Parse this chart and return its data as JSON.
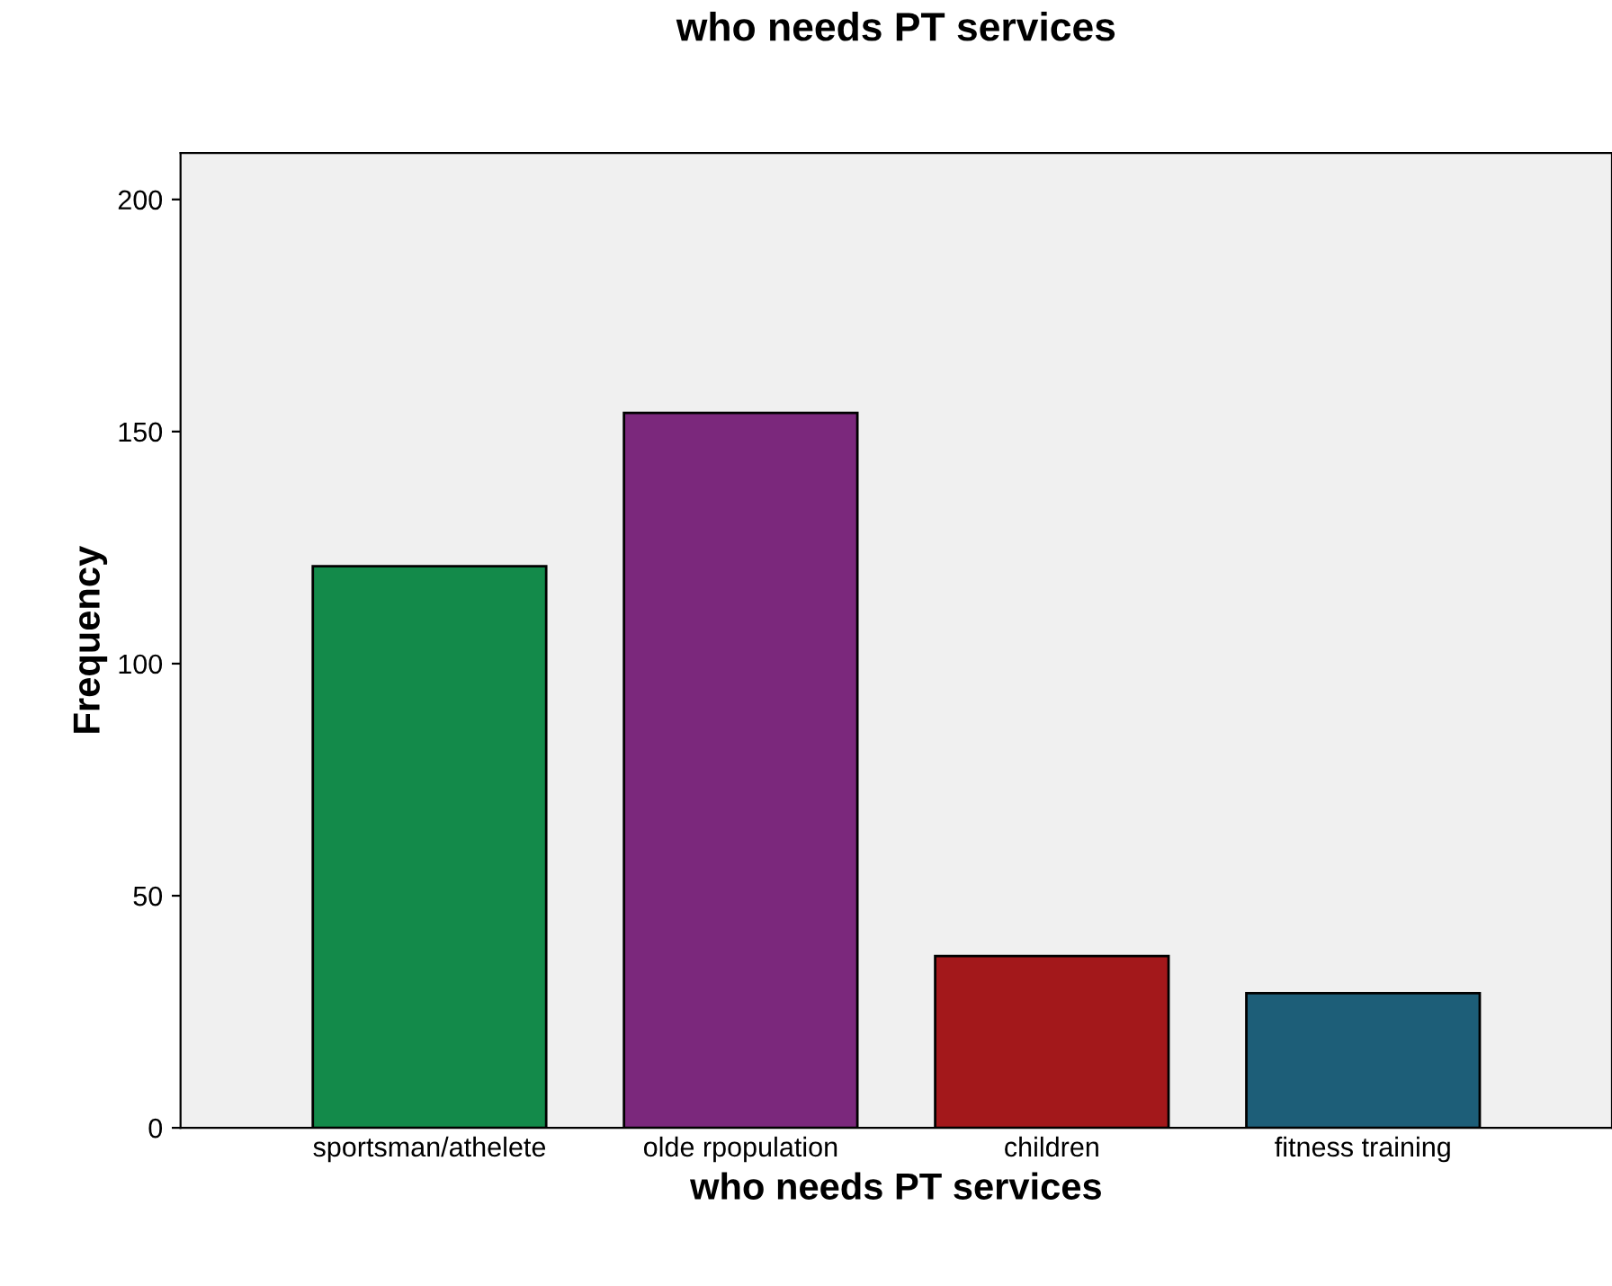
{
  "chart_data": {
    "type": "bar",
    "title": "who needs PT services",
    "xlabel": "who needs PT services",
    "ylabel": "Frequency",
    "categories": [
      "sportsman/athelete",
      "olde rpopulation",
      "children",
      "fitness training"
    ],
    "values": [
      121,
      154,
      37,
      29
    ],
    "colors": [
      "#138a4a",
      "#7b287c",
      "#a3181b",
      "#1d5e78"
    ],
    "ylim": [
      0,
      210
    ],
    "yticks": [
      0,
      50,
      100,
      150,
      200
    ],
    "grid": false,
    "legend": false
  }
}
